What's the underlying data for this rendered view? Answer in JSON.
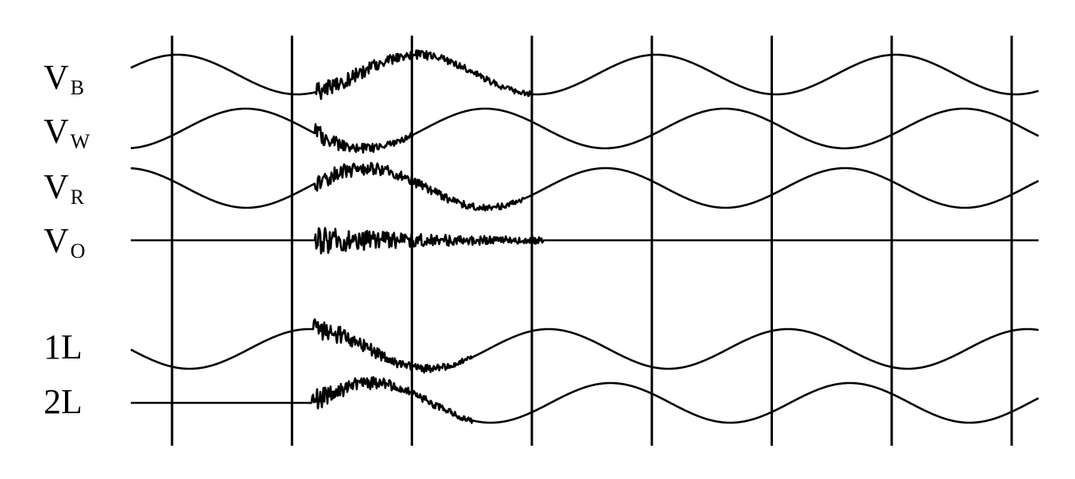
{
  "labels": [
    {
      "text": "V",
      "sub": "B"
    },
    {
      "text": "V",
      "sub": "W"
    },
    {
      "text": "V",
      "sub": "R"
    },
    {
      "text": "V",
      "sub": "O"
    },
    {
      "text": "1L"
    },
    {
      "text": "2L"
    }
  ]
}
